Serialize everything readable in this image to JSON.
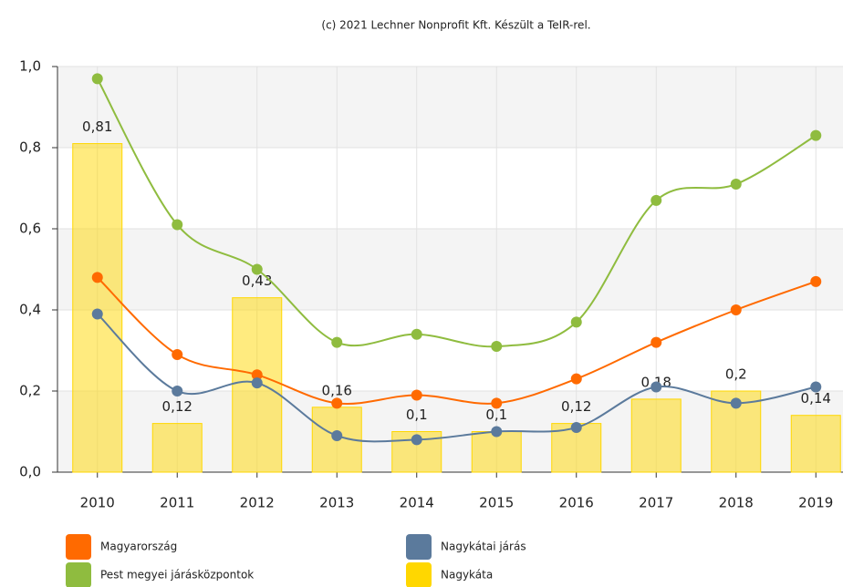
{
  "chart_data": {
    "type": "bar_line",
    "title": "(c) 2021 Lechner Nonprofit Kft. Készült a TeIR-rel.",
    "categories": [
      "2010",
      "2011",
      "2012",
      "2013",
      "2014",
      "2015",
      "2016",
      "2017",
      "2018",
      "2019"
    ],
    "series": [
      {
        "name": "Magyarország",
        "type": "line",
        "color": "#ff6a00",
        "values": [
          0.48,
          0.29,
          0.24,
          0.17,
          0.19,
          0.17,
          0.23,
          0.32,
          0.4,
          0.47
        ]
      },
      {
        "name": "Nagykátai járás",
        "type": "line",
        "color": "#5b7a9c",
        "values": [
          0.39,
          0.2,
          0.22,
          0.09,
          0.08,
          0.1,
          0.11,
          0.21,
          0.17,
          0.21
        ]
      },
      {
        "name": "Pest megyei járásközpontok",
        "type": "line",
        "color": "#8fbc3f",
        "values": [
          0.97,
          0.61,
          0.5,
          0.32,
          0.34,
          0.31,
          0.37,
          0.67,
          0.71,
          0.83
        ]
      },
      {
        "name": "Nagykáta",
        "type": "bar",
        "color": "#ffd700",
        "values": [
          0.81,
          0.12,
          0.43,
          0.16,
          0.1,
          0.1,
          0.12,
          0.18,
          0.2,
          0.14
        ],
        "value_labels": [
          "0,81",
          "0,12",
          "0,43",
          "0,16",
          "0,1",
          "0,1",
          "0,12",
          "0,18",
          "0,2",
          "0,14"
        ]
      }
    ],
    "ylim": [
      0,
      1
    ],
    "yticks": [
      {
        "value": 0,
        "label": "0,0"
      },
      {
        "value": 0.2,
        "label": "0,2"
      },
      {
        "value": 0.4,
        "label": "0,4"
      },
      {
        "value": 0.6,
        "label": "0,6"
      },
      {
        "value": 0.8,
        "label": "0,8"
      },
      {
        "value": 1,
        "label": "1,0"
      }
    ],
    "grid": true,
    "legend": "bottom"
  }
}
